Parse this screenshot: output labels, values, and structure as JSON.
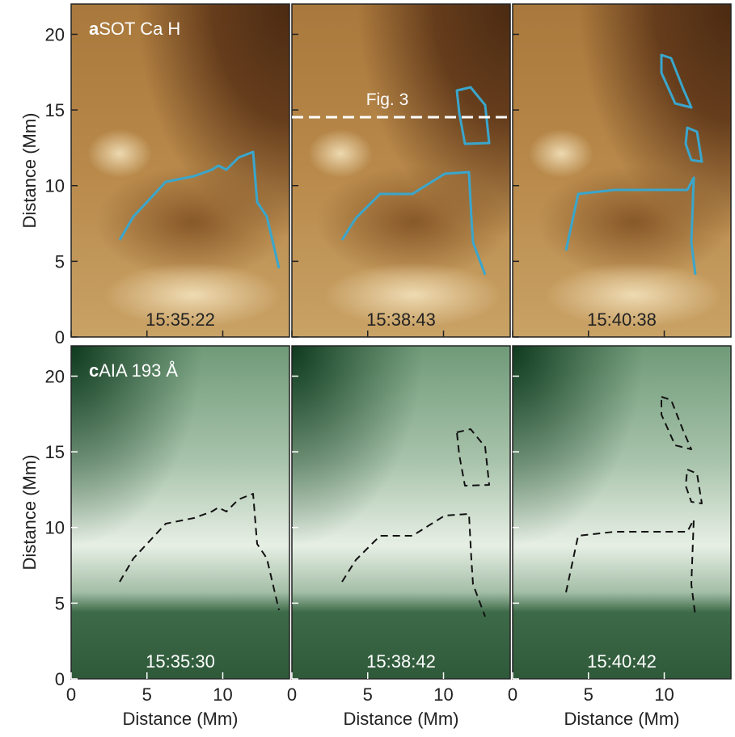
{
  "panels": {
    "rows": [
      {
        "letter": "a",
        "label": "SOT Ca H",
        "times": [
          "15:35:22",
          "15:38:43",
          "15:40:38"
        ]
      },
      {
        "letter": "c",
        "label": "AIA 193 Å",
        "times": [
          "15:35:30",
          "15:38:42",
          "15:40:42"
        ]
      }
    ]
  },
  "annotation": "Fig. 3",
  "y_axis": {
    "label": "Distance (Mm)",
    "ticks": [
      0,
      5,
      10,
      15,
      20
    ],
    "lim": [
      0,
      22
    ]
  },
  "x_axis": {
    "label": "Distance (Mm)",
    "ticks": [
      0,
      5,
      10
    ],
    "lim": [
      0,
      14.4
    ]
  }
}
